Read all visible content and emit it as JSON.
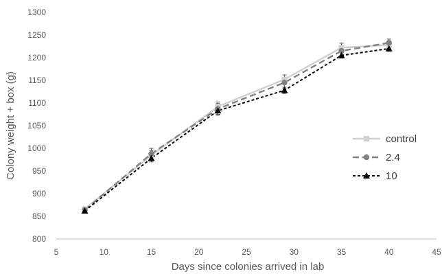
{
  "chart_data": {
    "type": "line",
    "title": "",
    "xlabel": "Days since colonies arrived in lab",
    "ylabel": "Colony weight + box (g)",
    "xlim": [
      5,
      45
    ],
    "ylim": [
      800,
      1300
    ],
    "x_ticks": [
      5,
      10,
      15,
      20,
      25,
      30,
      35,
      40,
      45
    ],
    "y_ticks": [
      800,
      850,
      900,
      950,
      1000,
      1050,
      1100,
      1150,
      1200,
      1250,
      1300
    ],
    "x_tick_labels": [
      "5",
      "10",
      "15",
      "20",
      "25",
      "30",
      "35",
      "40",
      "45"
    ],
    "y_tick_labels": [
      "800",
      "850",
      "900",
      "950",
      "1000",
      "1050",
      "1100",
      "1150",
      "1200",
      "1250",
      "1300"
    ],
    "grid": false,
    "legend_position": "right",
    "series": [
      {
        "name": "control",
        "color": "#d0d0d0",
        "dash": "solid",
        "marker": "square",
        "x": [
          8,
          15,
          22,
          29,
          35,
          40
        ],
        "y": [
          866,
          985,
          1092,
          1152,
          1222,
          1228
        ],
        "err": [
          3,
          10,
          10,
          10,
          10,
          8
        ]
      },
      {
        "name": "2.4",
        "color": "#808080",
        "dash": "dashed",
        "marker": "circle",
        "x": [
          8,
          15,
          22,
          29,
          35,
          40
        ],
        "y": [
          864,
          988,
          1087,
          1145,
          1215,
          1233
        ],
        "err": [
          3,
          12,
          12,
          12,
          10,
          8
        ]
      },
      {
        "name": "10",
        "color": "#000000",
        "dash": "dashed-fine",
        "marker": "triangle",
        "x": [
          8,
          15,
          22,
          29,
          35,
          40
        ],
        "y": [
          862,
          978,
          1083,
          1128,
          1205,
          1220
        ],
        "err": [
          3,
          8,
          10,
          7,
          6,
          6
        ]
      }
    ]
  }
}
